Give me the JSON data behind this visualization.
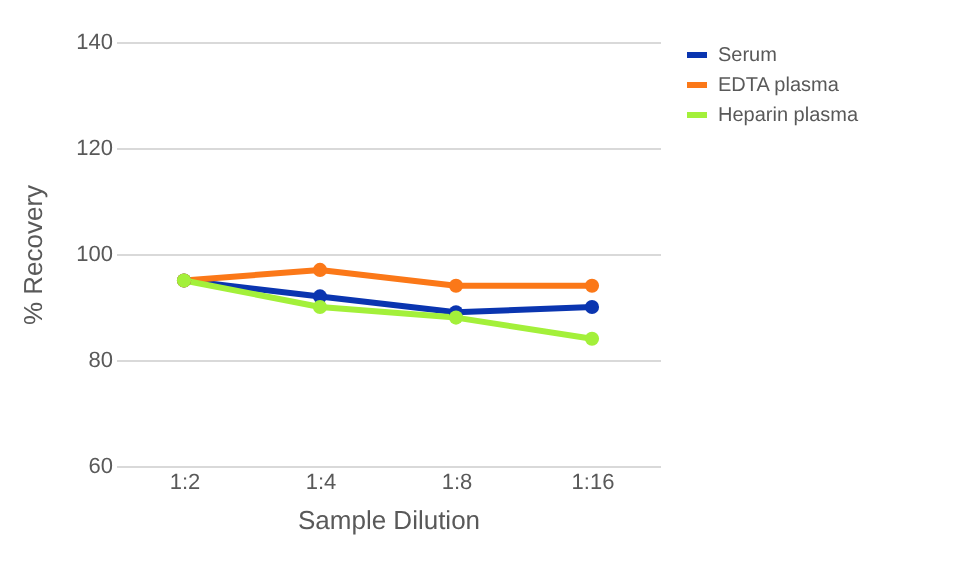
{
  "chart_data": {
    "type": "line",
    "xlabel": "Sample Dilution",
    "ylabel": "% Recovery",
    "categories": [
      "1:2",
      "1:4",
      "1:8",
      "1:16"
    ],
    "series": [
      {
        "name": "Serum",
        "color": "#0a35b0",
        "values": [
          95,
          92,
          89,
          90
        ]
      },
      {
        "name": "EDTA plasma",
        "color": "#fb7818",
        "values": [
          95,
          97,
          94,
          94
        ]
      },
      {
        "name": "Heparin plasma",
        "color": "#a3f03a",
        "values": [
          95,
          90,
          88,
          84
        ]
      }
    ],
    "ylim": [
      60,
      140
    ],
    "yticks": [
      60,
      80,
      100,
      120,
      140
    ],
    "grid": "y",
    "legend": "right",
    "marker": "circle"
  }
}
